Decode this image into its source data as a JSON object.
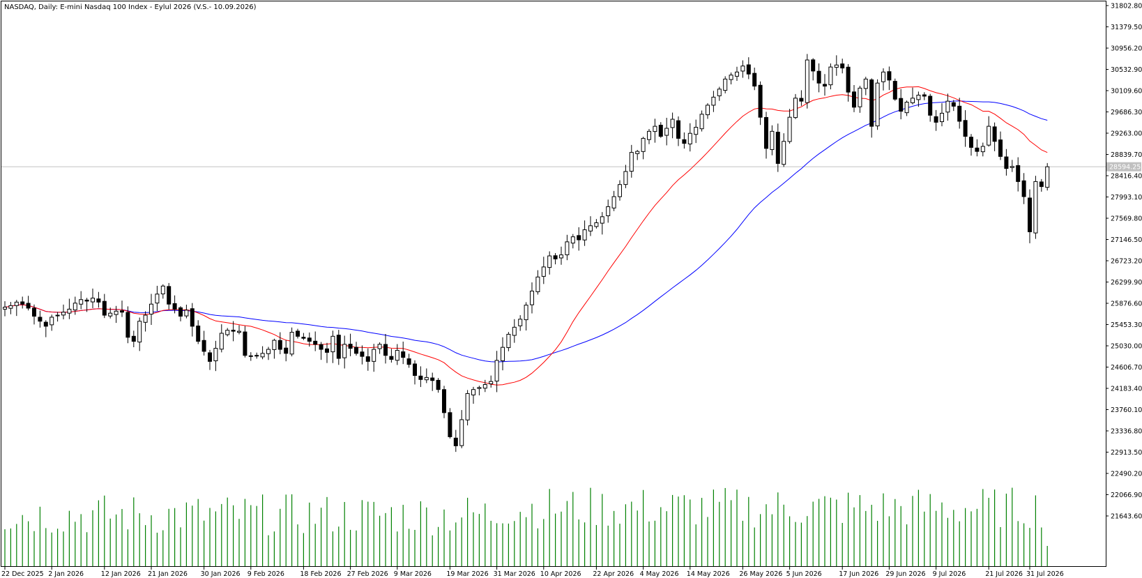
{
  "header": {
    "title": "NASDAQ, Daily:  E-mini Nasdaq 100 Index - Eylul 2026 (V.S.- 10.09.2026)"
  },
  "chart_data": {
    "type": "candlestick",
    "symbol": "NASDAQ",
    "timeframe": "Daily",
    "price_axis": {
      "ticks": [
        "31802.80",
        "31379.50",
        "30956.20",
        "30532.90",
        "30109.60",
        "29686.30",
        "29263.00",
        "28839.70",
        "28416.40",
        "27993.10",
        "27569.80",
        "27146.50",
        "26723.20",
        "26299.90",
        "25876.60",
        "25453.30",
        "25030.00",
        "24606.70",
        "24183.40",
        "23760.10",
        "23336.80",
        "22913.50",
        "22490.20",
        "22066.90",
        "21643.60"
      ],
      "min": 21350,
      "max": 31802.8
    },
    "current_price": {
      "label": "28594.25",
      "value": 28594.25
    },
    "date_labels": [
      "22 Dec 2025",
      "2 Jan 2026",
      "12 Jan 2026",
      "21 Jan 2026",
      "30 Jan 2026",
      "9 Feb 2026",
      "18 Feb 2026",
      "27 Feb 2026",
      "9 Mar 2026",
      "19 Mar 2026",
      "31 Mar 2026",
      "10 Apr 2026",
      "22 Apr 2026",
      "4 May 2026",
      "14 May 2026",
      "26 May 2026",
      "5 Jun 2026",
      "17 Jun 2026",
      "29 Jun 2026",
      "9 Jul 2026",
      "21 Jul 2026",
      "31 Jul 2026"
    ],
    "date_label_index": [
      0,
      8,
      17,
      25,
      34,
      42,
      51,
      59,
      67,
      76,
      84,
      92,
      101,
      109,
      117,
      126,
      134,
      143,
      151,
      159,
      168,
      175
    ],
    "closes": [
      25800,
      25830,
      25900,
      25860,
      25780,
      25620,
      25520,
      25420,
      25600,
      25640,
      25700,
      25760,
      25880,
      25950,
      25920,
      25980,
      25900,
      25640,
      25680,
      25720,
      25700,
      25200,
      25120,
      25520,
      25640,
      25860,
      26060,
      26220,
      25860,
      25760,
      25620,
      25740,
      25420,
      25120,
      24920,
      24720,
      24980,
      25280,
      25340,
      25320,
      25320,
      24840,
      24820,
      24840,
      24880,
      24960,
      25140,
      24960,
      24880,
      25300,
      25220,
      25180,
      25120,
      25060,
      24960,
      24900,
      25220,
      24780,
      25060,
      24980,
      24880,
      24820,
      24720,
      24960,
      25060,
      24840,
      24760,
      24940,
      24800,
      24660,
      24440,
      24360,
      24400,
      24340,
      24160,
      23700,
      23220,
      23040,
      23560,
      24080,
      24160,
      24200,
      24260,
      24320,
      24740,
      25000,
      25260,
      25400,
      25560,
      25840,
      26120,
      26400,
      26600,
      26820,
      26760,
      26840,
      27100,
      27200,
      27140,
      27340,
      27420,
      27480,
      27600,
      27800,
      28000,
      28240,
      28500,
      28880,
      28900,
      29160,
      29300,
      29400,
      29200,
      29360,
      29540,
      29160,
      29060,
      29260,
      29380,
      29640,
      29820,
      29980,
      30140,
      30340,
      30420,
      30480,
      30600,
      30440,
      30200,
      29580,
      28960,
      29300,
      28660,
      29100,
      29580,
      29960,
      29900,
      30720,
      30500,
      30260,
      30200,
      30580,
      30620,
      30560,
      30080,
      29780,
      30160,
      30340,
      29400,
      30260,
      30480,
      30320,
      29940,
      29700,
      29880,
      29960,
      30020,
      30000,
      29620,
      29480,
      29660,
      29900,
      29800,
      29500,
      29200,
      28980,
      28900,
      29000,
      29400,
      29100,
      28800,
      28560,
      28600,
      28300,
      28000,
      27300,
      28300,
      28200,
      28594
    ]
  }
}
